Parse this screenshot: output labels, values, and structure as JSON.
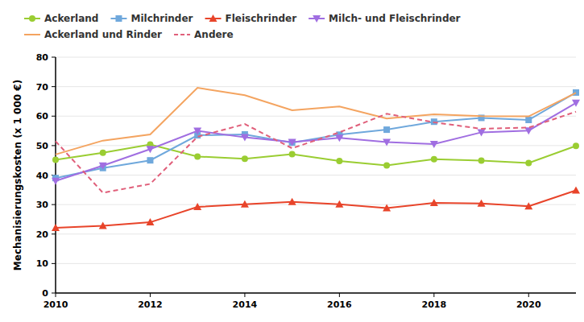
{
  "chart_data": {
    "type": "line",
    "y_label": "Mechanisierungskosten (x 1 000 €)",
    "x": [
      2010,
      2011,
      2012,
      2013,
      2014,
      2015,
      2016,
      2017,
      2018,
      2019,
      2020,
      2021
    ],
    "xlim": [
      2010,
      2021
    ],
    "xticks": [
      2010,
      2012,
      2014,
      2016,
      2018,
      2020
    ],
    "ylim": [
      0,
      80
    ],
    "yticks": [
      0,
      10,
      20,
      30,
      40,
      50,
      60,
      70,
      80
    ],
    "grid": true,
    "legend": "top",
    "series": [
      {
        "name": "Ackerland",
        "color": "#9acd32",
        "marker": "circle",
        "line_style": "solid",
        "values": [
          45.2,
          47.6,
          50.4,
          46.3,
          45.5,
          47.1,
          44.8,
          43.3,
          45.4,
          44.9,
          44.1,
          49.9
        ]
      },
      {
        "name": "Milchrinder",
        "color": "#6fa8dc",
        "marker": "square",
        "line_style": "solid",
        "values": [
          39.0,
          42.4,
          45.0,
          53.5,
          53.8,
          51.0,
          53.7,
          55.4,
          58.1,
          59.4,
          58.7,
          68.0
        ]
      },
      {
        "name": "Fleischrinder",
        "color": "#e8442a",
        "marker": "triangle",
        "line_style": "solid",
        "values": [
          22.1,
          22.8,
          24.0,
          29.2,
          30.1,
          30.9,
          30.1,
          28.8,
          30.6,
          30.4,
          29.4,
          34.8
        ]
      },
      {
        "name": "Milch- und Fleischrinder",
        "color": "#a06ee1",
        "marker": "triangle-down",
        "line_style": "solid",
        "values": [
          38.0,
          43.2,
          48.8,
          55.0,
          52.8,
          51.2,
          52.6,
          51.2,
          50.5,
          54.5,
          55.1,
          64.5
        ]
      },
      {
        "name": "Ackerland und Rinder",
        "color": "#f4a460",
        "marker": "none",
        "line_style": "solid",
        "values": [
          47.0,
          51.7,
          53.8,
          69.6,
          67.1,
          62.0,
          63.3,
          59.2,
          60.6,
          60.0,
          59.9,
          67.9
        ]
      },
      {
        "name": "Andere",
        "color": "#e05f7a",
        "marker": "none",
        "line_style": "dashed",
        "values": [
          51.5,
          34.0,
          37.0,
          53.0,
          57.3,
          49.1,
          54.5,
          60.8,
          57.9,
          55.7,
          56.1,
          61.5
        ]
      }
    ]
  }
}
